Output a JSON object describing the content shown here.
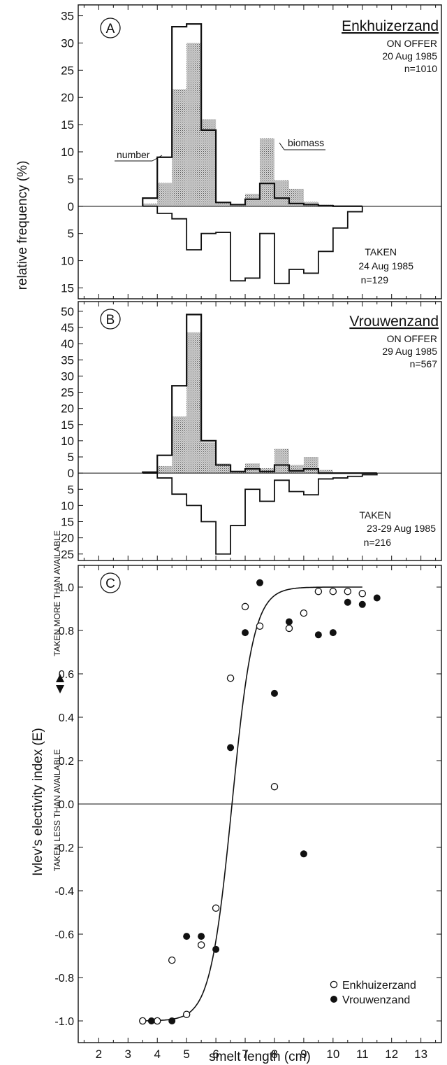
{
  "shared": {
    "ylabel_ab": "relative frequency (%)"
  },
  "chart_data": [
    {
      "type": "bar",
      "panel": "A",
      "site": "Enkhuizerzand",
      "offer_label": [
        "ON OFFER",
        "20 Aug 1985",
        "n=1010"
      ],
      "taken_label": [
        "TAKEN",
        "24 Aug 1985",
        "n=129"
      ],
      "series_labels": {
        "number": "number",
        "biomass": "biomass"
      },
      "bin_width": 0.5,
      "x": [
        3.75,
        4.25,
        4.75,
        5.25,
        5.75,
        6.25,
        6.75,
        7.25,
        7.75,
        8.25,
        8.75,
        9.25,
        9.75,
        10.25,
        10.75
      ],
      "series": [
        {
          "name": "number",
          "values": [
            1.5,
            9,
            33,
            33.5,
            14,
            0.7,
            0.3,
            1.3,
            4.2,
            1.5,
            0.5,
            0.3,
            0.1,
            0,
            0
          ]
        },
        {
          "name": "biomass",
          "values": [
            0.5,
            4.3,
            21.5,
            30,
            16,
            0.8,
            0.3,
            2.3,
            12.5,
            4.8,
            3.2,
            0.8,
            0.3,
            0,
            0
          ]
        },
        {
          "values": [
            0,
            1.3,
            2.3,
            8,
            5,
            4.8,
            13.7,
            13.2,
            5,
            14.2,
            11.6,
            12.3,
            8.3,
            4,
            1
          ]
        }
      ],
      "yticks_up": [
        0,
        5,
        10,
        15,
        20,
        25,
        30,
        35
      ],
      "yticks_down": [
        5,
        10,
        15
      ],
      "ylim": [
        -17,
        37
      ]
    },
    {
      "type": "bar",
      "panel": "B",
      "site": "Vrouwenzand",
      "offer_label": [
        "ON OFFER",
        "29 Aug 1985",
        "n=567"
      ],
      "taken_label": [
        "TAKEN",
        "23-29 Aug 1985",
        "n=216"
      ],
      "bin_width": 0.5,
      "x": [
        3.75,
        4.25,
        4.75,
        5.25,
        5.75,
        6.25,
        6.75,
        7.25,
        7.75,
        8.25,
        8.75,
        9.25,
        9.75,
        10.25,
        10.75,
        11.25
      ],
      "series": [
        {
          "name": "number",
          "values": [
            0.3,
            5.5,
            27,
            49,
            10,
            2.5,
            0.5,
            1.3,
            0.5,
            2.5,
            0.7,
            1.3,
            0,
            0,
            0,
            0
          ]
        },
        {
          "name": "biomass",
          "values": [
            0,
            2.2,
            17.5,
            43.5,
            9.5,
            3,
            0.5,
            3,
            1.5,
            7.5,
            2.5,
            5,
            1,
            0,
            0,
            0
          ]
        },
        {
          "values": [
            0,
            1.5,
            6.5,
            10,
            15,
            25,
            16.2,
            5,
            8.7,
            2.2,
            5.7,
            6.7,
            1.8,
            1.5,
            1,
            0.5
          ]
        }
      ],
      "yticks_up": [
        0,
        5,
        10,
        15,
        20,
        25,
        30,
        35,
        40,
        45,
        50
      ],
      "yticks_down": [
        5,
        10,
        15,
        20,
        25
      ],
      "ylim": [
        -27,
        53
      ]
    },
    {
      "type": "scatter",
      "panel": "C",
      "ylabel": "Ivlev's electivity index (E)",
      "ylabel_upper": "TAKEN MORE THAN AVAILABLE",
      "ylabel_lower": "TAKEN LESS THAN AVAILABLE",
      "xlabel": "smelt length (cm)",
      "xlim": [
        1.3,
        13.7
      ],
      "ylim": [
        -1.1,
        1.1
      ],
      "xticks": [
        2,
        3,
        4,
        5,
        6,
        7,
        8,
        9,
        10,
        11,
        12,
        13
      ],
      "yticks": [
        1.0,
        0.8,
        0.6,
        0.4,
        0.2,
        0.0,
        -0.2,
        -0.4,
        -0.6,
        -0.8,
        -1.0
      ],
      "ytick_labels": [
        "1.0",
        "0.8",
        "0.6",
        "0.4",
        "0.2",
        "0.0",
        "-0.2",
        "-0.4",
        "-0.6",
        "-0.8",
        "-1.0"
      ],
      "legend_position": "bottom-right",
      "curve": {
        "type": "logistic",
        "x0": 6.55,
        "k": 2.7
      },
      "series": [
        {
          "name": "Enkhuizerzand",
          "marker": "open",
          "points": [
            [
              3.5,
              -1.0
            ],
            [
              4.0,
              -1.0
            ],
            [
              4.5,
              -0.72
            ],
            [
              5.0,
              -0.97
            ],
            [
              5.5,
              -0.65
            ],
            [
              6.0,
              -0.48
            ],
            [
              6.5,
              0.58
            ],
            [
              7.0,
              0.91
            ],
            [
              7.5,
              0.82
            ],
            [
              8.0,
              0.08
            ],
            [
              8.5,
              0.81
            ],
            [
              9.0,
              0.88
            ],
            [
              9.5,
              0.98
            ],
            [
              10.0,
              0.98
            ],
            [
              10.5,
              0.98
            ],
            [
              11.0,
              0.97
            ]
          ]
        },
        {
          "name": "Vrouwenzand",
          "marker": "filled",
          "points": [
            [
              3.8,
              -1.0
            ],
            [
              4.5,
              -1.0
            ],
            [
              5.0,
              -0.61
            ],
            [
              5.5,
              -0.61
            ],
            [
              6.0,
              -0.67
            ],
            [
              6.5,
              0.26
            ],
            [
              7.0,
              0.79
            ],
            [
              7.5,
              1.02
            ],
            [
              8.0,
              0.51
            ],
            [
              8.5,
              0.84
            ],
            [
              9.0,
              -0.23
            ],
            [
              9.5,
              0.78
            ],
            [
              10.0,
              0.79
            ],
            [
              10.5,
              0.93
            ],
            [
              11.0,
              0.92
            ],
            [
              11.5,
              0.95
            ]
          ]
        }
      ]
    }
  ]
}
